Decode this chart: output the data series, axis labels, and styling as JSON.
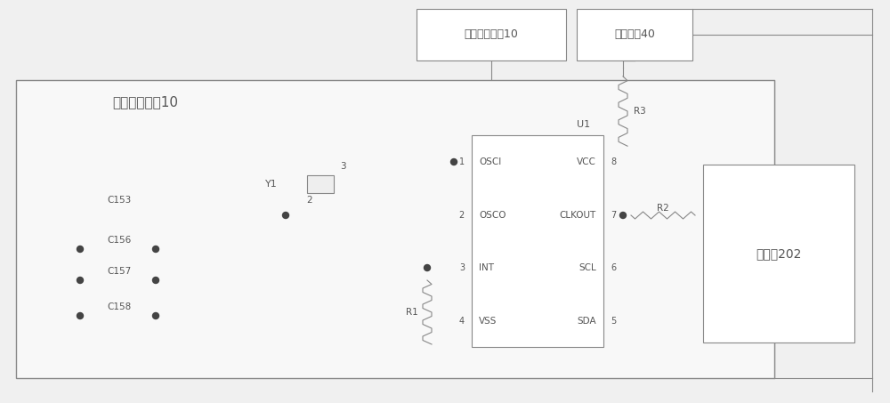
{
  "bg_color": "#f0f0f0",
  "line_color": "#888888",
  "box_fill": "#ffffff",
  "text_color": "#555555",
  "figsize": [
    10.0,
    4.53
  ],
  "dpi": 100,
  "title": "实时时钟电路10",
  "top_box1_label": "实时时钟电路10",
  "top_box2_label": "工作电源40",
  "processor_label": "处理器202",
  "u1_label": "U1",
  "u1_pins_left": [
    "OSCI",
    "OSCO",
    "INT",
    "VSS"
  ],
  "u1_pins_right": [
    "VCC",
    "CLKOUT",
    "SCL",
    "SDA"
  ],
  "u1_pin_nums_left": [
    "1",
    "2",
    "3",
    "4"
  ],
  "u1_pin_nums_right": [
    "8",
    "7",
    "6",
    "5"
  ],
  "cap_labels": [
    "C153",
    "C156",
    "C157",
    "C158"
  ],
  "crystal_label": "Y1",
  "r1_label": "R1",
  "r2_label": "R2",
  "r3_label": "R3",
  "crystal_pin2": "2",
  "crystal_pin3": "3"
}
